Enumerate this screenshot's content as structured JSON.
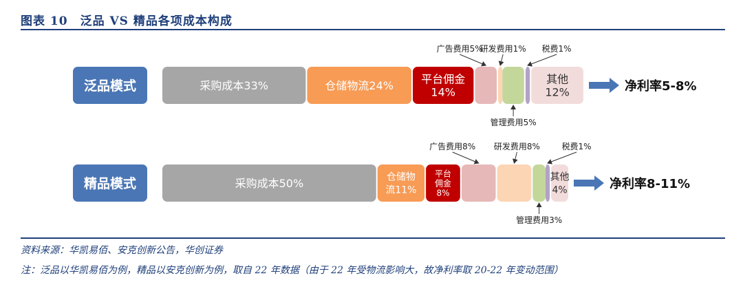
{
  "header": {
    "figure_title": "图表 10　泛品 VS 精品各项成本构成"
  },
  "chart_data": {
    "type": "stacked-bar",
    "title": "泛品 VS 精品各项成本构成",
    "colors": {
      "采购成本": "#a6a6a6",
      "仓储物流": "#f79b55",
      "平台佣金": "#c00000",
      "广告费用": "#e6b8b7",
      "研发费用": "#fcd5b4",
      "管理费用": "#c4d79b",
      "税费": "#b3a2c7",
      "其他": "#f2dcdb",
      "model_box": "#4a76b5",
      "arrow": "#4a76b5",
      "line": "#1f3f7a"
    },
    "rows": [
      {
        "model": "泛品模式",
        "net_margin": "净利率5-8%",
        "segments": [
          {
            "name": "采购成本",
            "value": 33,
            "label": [
              "采购成本33%"
            ]
          },
          {
            "name": "仓储物流",
            "value": 24,
            "label": [
              "仓储物流24%"
            ]
          },
          {
            "name": "平台佣金",
            "value": 14,
            "label": [
              "平台佣金",
              "14%"
            ]
          },
          {
            "name": "广告费用",
            "value": 5,
            "label": [],
            "callout": "广告费用5%",
            "callout_pos": "top"
          },
          {
            "name": "研发费用",
            "value": 1,
            "label": [],
            "callout": "研发费用1%",
            "callout_pos": "top"
          },
          {
            "name": "管理费用",
            "value": 5,
            "label": [],
            "callout": "管理费用5%",
            "callout_pos": "bottom"
          },
          {
            "name": "税费",
            "value": 1,
            "label": [],
            "callout": "税费1%",
            "callout_pos": "top"
          },
          {
            "name": "其他",
            "value": 12,
            "label": [
              "其他",
              "12%"
            ]
          }
        ]
      },
      {
        "model": "精品模式",
        "net_margin": "净利率8-11%",
        "segments": [
          {
            "name": "采购成本",
            "value": 50,
            "label": [
              "采购成本50%"
            ]
          },
          {
            "name": "仓储物流",
            "value": 11,
            "label": [
              "仓储物",
              "流11%"
            ]
          },
          {
            "name": "平台佣金",
            "value": 8,
            "label": [
              "平台",
              "佣金",
              "8%"
            ]
          },
          {
            "name": "广告费用",
            "value": 8,
            "label": [],
            "callout": "广告费用8%",
            "callout_pos": "top"
          },
          {
            "name": "研发费用",
            "value": 8,
            "label": [],
            "callout": "研发费用8%",
            "callout_pos": "top"
          },
          {
            "name": "管理费用",
            "value": 3,
            "label": [],
            "callout": "管理费用3%",
            "callout_pos": "bottom"
          },
          {
            "name": "税费",
            "value": 1,
            "label": [],
            "callout": "税费1%",
            "callout_pos": "top"
          },
          {
            "name": "其他",
            "value": 4,
            "label": [
              "其他",
              "4%"
            ]
          }
        ]
      }
    ]
  },
  "footer": {
    "source": "资料来源：华凯易佰、安克创新公告，华创证券",
    "note": "注：泛品以华凯易佰为例，精品以安克创新为例，取自 22 年数据（由于 22 年受物流影响大，故净利率取 20-22 年变动范围）"
  }
}
